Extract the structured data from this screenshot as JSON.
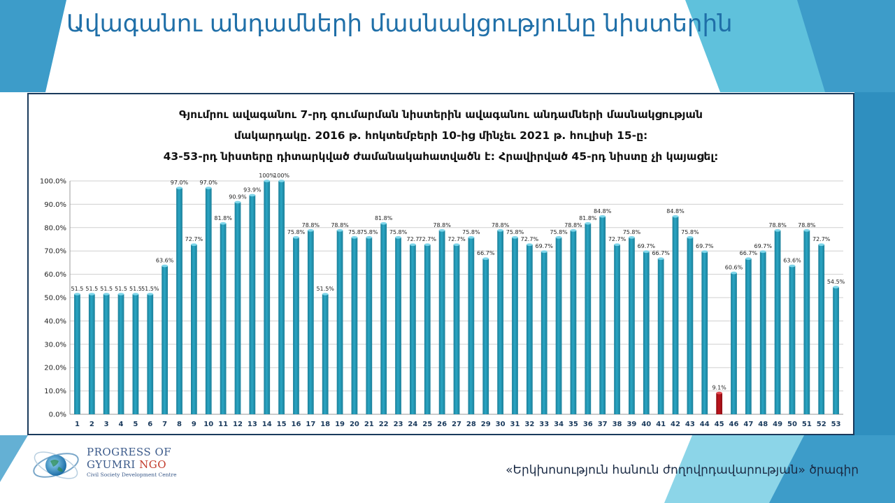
{
  "slide": {
    "title": "Ավագանու անդամների մասնակցությունը նիստերին",
    "footer": "«Երկխոսություն հանուն ժողովրդավարության» ծրագիր"
  },
  "logo": {
    "line1": "PROGRESS OF",
    "line2a": "GYUMRI ",
    "line2b": "NGO",
    "line3": "Civil Society Development Centre"
  },
  "colors": {
    "accent": "#1f6fa8",
    "bar": "#2aa6c4",
    "bar_dark": "#1b7f99",
    "bar_highlight": "#c0141c"
  },
  "chart_data": {
    "type": "bar",
    "title_lines": [
      "Գյումրու ավագանու 7-րդ գումարման նիստերին ավագանու անդամների մասնակցության",
      "մակարդակը. 2016 թ. հոկտեմբերի 10-ից մինչեւ 2021 թ. հուլիսի 15-ը:",
      "43-53-րդ նիստերը դիտարկված ժամանակահատվածն է: Հրավիրված 45-րդ նիստը չի կայացել:"
    ],
    "categories": [
      "1",
      "2",
      "3",
      "4",
      "5",
      "6",
      "7",
      "8",
      "9",
      "10",
      "11",
      "12",
      "13",
      "14",
      "15",
      "16",
      "17",
      "18",
      "19",
      "20",
      "21",
      "22",
      "23",
      "24",
      "25",
      "26",
      "27",
      "28",
      "29",
      "30",
      "31",
      "32",
      "33",
      "34",
      "35",
      "36",
      "37",
      "38",
      "39",
      "40",
      "41",
      "42",
      "43",
      "44",
      "45",
      "46",
      "47",
      "48",
      "49",
      "50",
      "51",
      "52",
      "53"
    ],
    "values": [
      51.5,
      51.5,
      51.5,
      51.5,
      51.5,
      51.5,
      63.6,
      97.0,
      72.7,
      97.0,
      81.8,
      90.9,
      93.9,
      100,
      100,
      75.8,
      78.8,
      51.5,
      78.8,
      75.8,
      75.8,
      81.8,
      75.8,
      72.7,
      72.7,
      78.8,
      72.7,
      75.8,
      66.7,
      78.8,
      75.8,
      72.7,
      69.7,
      75.8,
      78.8,
      81.8,
      84.8,
      72.7,
      75.8,
      69.7,
      66.7,
      84.8,
      75.8,
      69.7,
      9.1,
      60.6,
      66.7,
      69.7,
      78.8,
      63.6,
      78.8,
      72.7,
      54.5
    ],
    "data_labels": [
      "51.5",
      "51.5",
      "51.5",
      "51.5",
      "51.5",
      "51.5%",
      "63.6%",
      "97.0%",
      "72.7%",
      "97.0%",
      "81.8%",
      "90.9%",
      "93.9%",
      "100%",
      "100%",
      "75.8%",
      "78.8%",
      "51.5%",
      "78.8%",
      "75.8",
      "75.8%",
      "81.8%",
      "75.8%",
      "72.7",
      "72.7%",
      "78.8%",
      "72.7%",
      "75.8%",
      "66.7%",
      "78.8%",
      "75.8%",
      "72.7%",
      "69.7%",
      "75.8%",
      "78.8%",
      "81.8%",
      "84.8%",
      "72.7%",
      "75.8%",
      "69.7%",
      "66.7%",
      "84.8%",
      "75.8%",
      "69.7%",
      "9.1%",
      "60.6%",
      "66.7%",
      "69.7%",
      "78.8%",
      "63.6%",
      "78.8%",
      "72.7%",
      "54.5%"
    ],
    "highlight_category": "45",
    "y_ticks": [
      "0.0%",
      "10.0%",
      "20.0%",
      "30.0%",
      "40.0%",
      "50.0%",
      "60.0%",
      "70.0%",
      "80.0%",
      "90.0%",
      "100.0%"
    ],
    "ylim": [
      0,
      100
    ],
    "xlabel": "",
    "ylabel": "",
    "grid": true,
    "legend": "none"
  }
}
